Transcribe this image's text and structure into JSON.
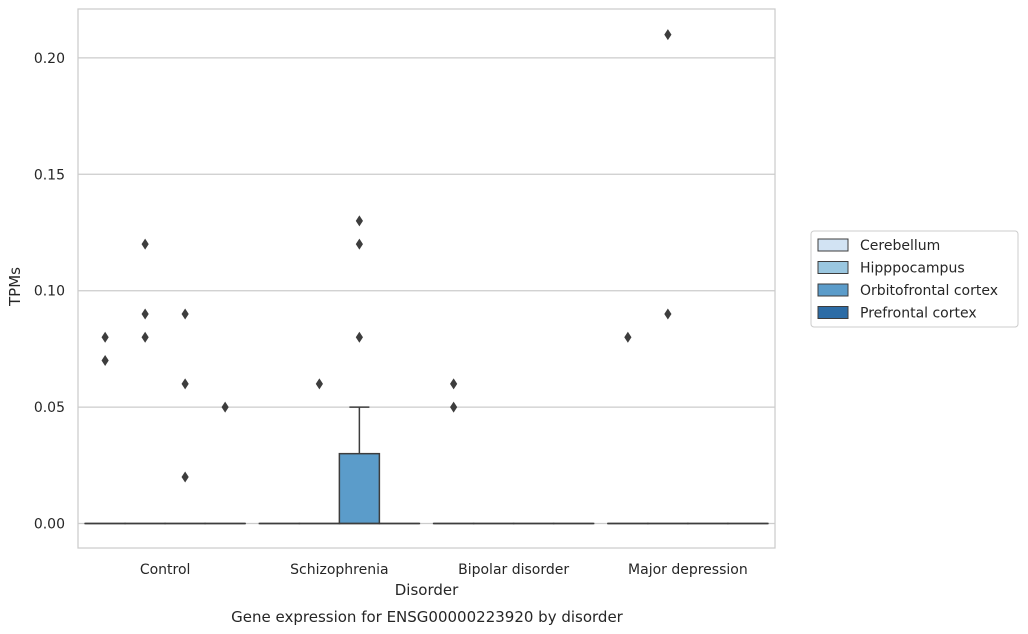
{
  "chart_data": {
    "type": "box",
    "title": "",
    "xlabel": "Disorder",
    "ylabel": "TPMs",
    "caption": "Gene expression for ENSG00000223920 by disorder",
    "categories": [
      "Control",
      "Schizophrenia",
      "Bipolar disorder",
      "Major depression"
    ],
    "y_ticks": [
      "0.00",
      "0.05",
      "0.10",
      "0.15",
      "0.20"
    ],
    "ylim": [
      -0.01,
      0.22
    ],
    "grid": true,
    "legend_position": "right",
    "series": [
      {
        "name": "Cerebellum",
        "color": "#d2e3f3",
        "boxes": [
          {
            "category": "Control",
            "q1": 0,
            "median": 0,
            "q3": 0,
            "whisker_low": 0,
            "whisker_high": 0,
            "outliers": [
              0.07,
              0.08
            ]
          },
          {
            "category": "Schizophrenia",
            "q1": 0,
            "median": 0,
            "q3": 0,
            "whisker_low": 0,
            "whisker_high": 0,
            "outliers": []
          },
          {
            "category": "Bipolar disorder",
            "q1": 0,
            "median": 0,
            "q3": 0,
            "whisker_low": 0,
            "whisker_high": 0,
            "outliers": [
              0.05,
              0.06
            ]
          },
          {
            "category": "Major depression",
            "q1": 0,
            "median": 0,
            "q3": 0,
            "whisker_low": 0,
            "whisker_high": 0,
            "outliers": [
              0.08
            ]
          }
        ]
      },
      {
        "name": "Hipppocampus",
        "color": "#9ac7e0",
        "boxes": [
          {
            "category": "Control",
            "q1": 0,
            "median": 0,
            "q3": 0,
            "whisker_low": 0,
            "whisker_high": 0,
            "outliers": [
              0.08,
              0.09,
              0.12
            ]
          },
          {
            "category": "Schizophrenia",
            "q1": 0,
            "median": 0,
            "q3": 0,
            "whisker_low": 0,
            "whisker_high": 0,
            "outliers": [
              0.06
            ]
          },
          {
            "category": "Bipolar disorder",
            "q1": 0,
            "median": 0,
            "q3": 0,
            "whisker_low": 0,
            "whisker_high": 0,
            "outliers": []
          },
          {
            "category": "Major depression",
            "q1": 0,
            "median": 0,
            "q3": 0,
            "whisker_low": 0,
            "whisker_high": 0,
            "outliers": [
              0.09,
              0.21
            ]
          }
        ]
      },
      {
        "name": "Orbitofrontal cortex",
        "color": "#5b9cca",
        "boxes": [
          {
            "category": "Control",
            "q1": 0,
            "median": 0,
            "q3": 0,
            "whisker_low": 0,
            "whisker_high": 0,
            "outliers": [
              0.02,
              0.06,
              0.09
            ]
          },
          {
            "category": "Schizophrenia",
            "q1": 0,
            "median": 0,
            "q3": 0.03,
            "whisker_low": 0,
            "whisker_high": 0.05,
            "outliers": [
              0.08,
              0.12,
              0.13
            ]
          },
          {
            "category": "Bipolar disorder",
            "q1": 0,
            "median": 0,
            "q3": 0,
            "whisker_low": 0,
            "whisker_high": 0,
            "outliers": []
          },
          {
            "category": "Major depression",
            "q1": 0,
            "median": 0,
            "q3": 0,
            "whisker_low": 0,
            "whisker_high": 0,
            "outliers": []
          }
        ]
      },
      {
        "name": "Prefrontal cortex",
        "color": "#2c6ca6",
        "boxes": [
          {
            "category": "Control",
            "q1": 0,
            "median": 0,
            "q3": 0,
            "whisker_low": 0,
            "whisker_high": 0,
            "outliers": [
              0.05
            ]
          },
          {
            "category": "Schizophrenia",
            "q1": 0,
            "median": 0,
            "q3": 0,
            "whisker_low": 0,
            "whisker_high": 0,
            "outliers": []
          },
          {
            "category": "Bipolar disorder",
            "q1": 0,
            "median": 0,
            "q3": 0,
            "whisker_low": 0,
            "whisker_high": 0,
            "outliers": []
          },
          {
            "category": "Major depression",
            "q1": 0,
            "median": 0,
            "q3": 0,
            "whisker_low": 0,
            "whisker_high": 0,
            "outliers": []
          }
        ]
      }
    ]
  }
}
